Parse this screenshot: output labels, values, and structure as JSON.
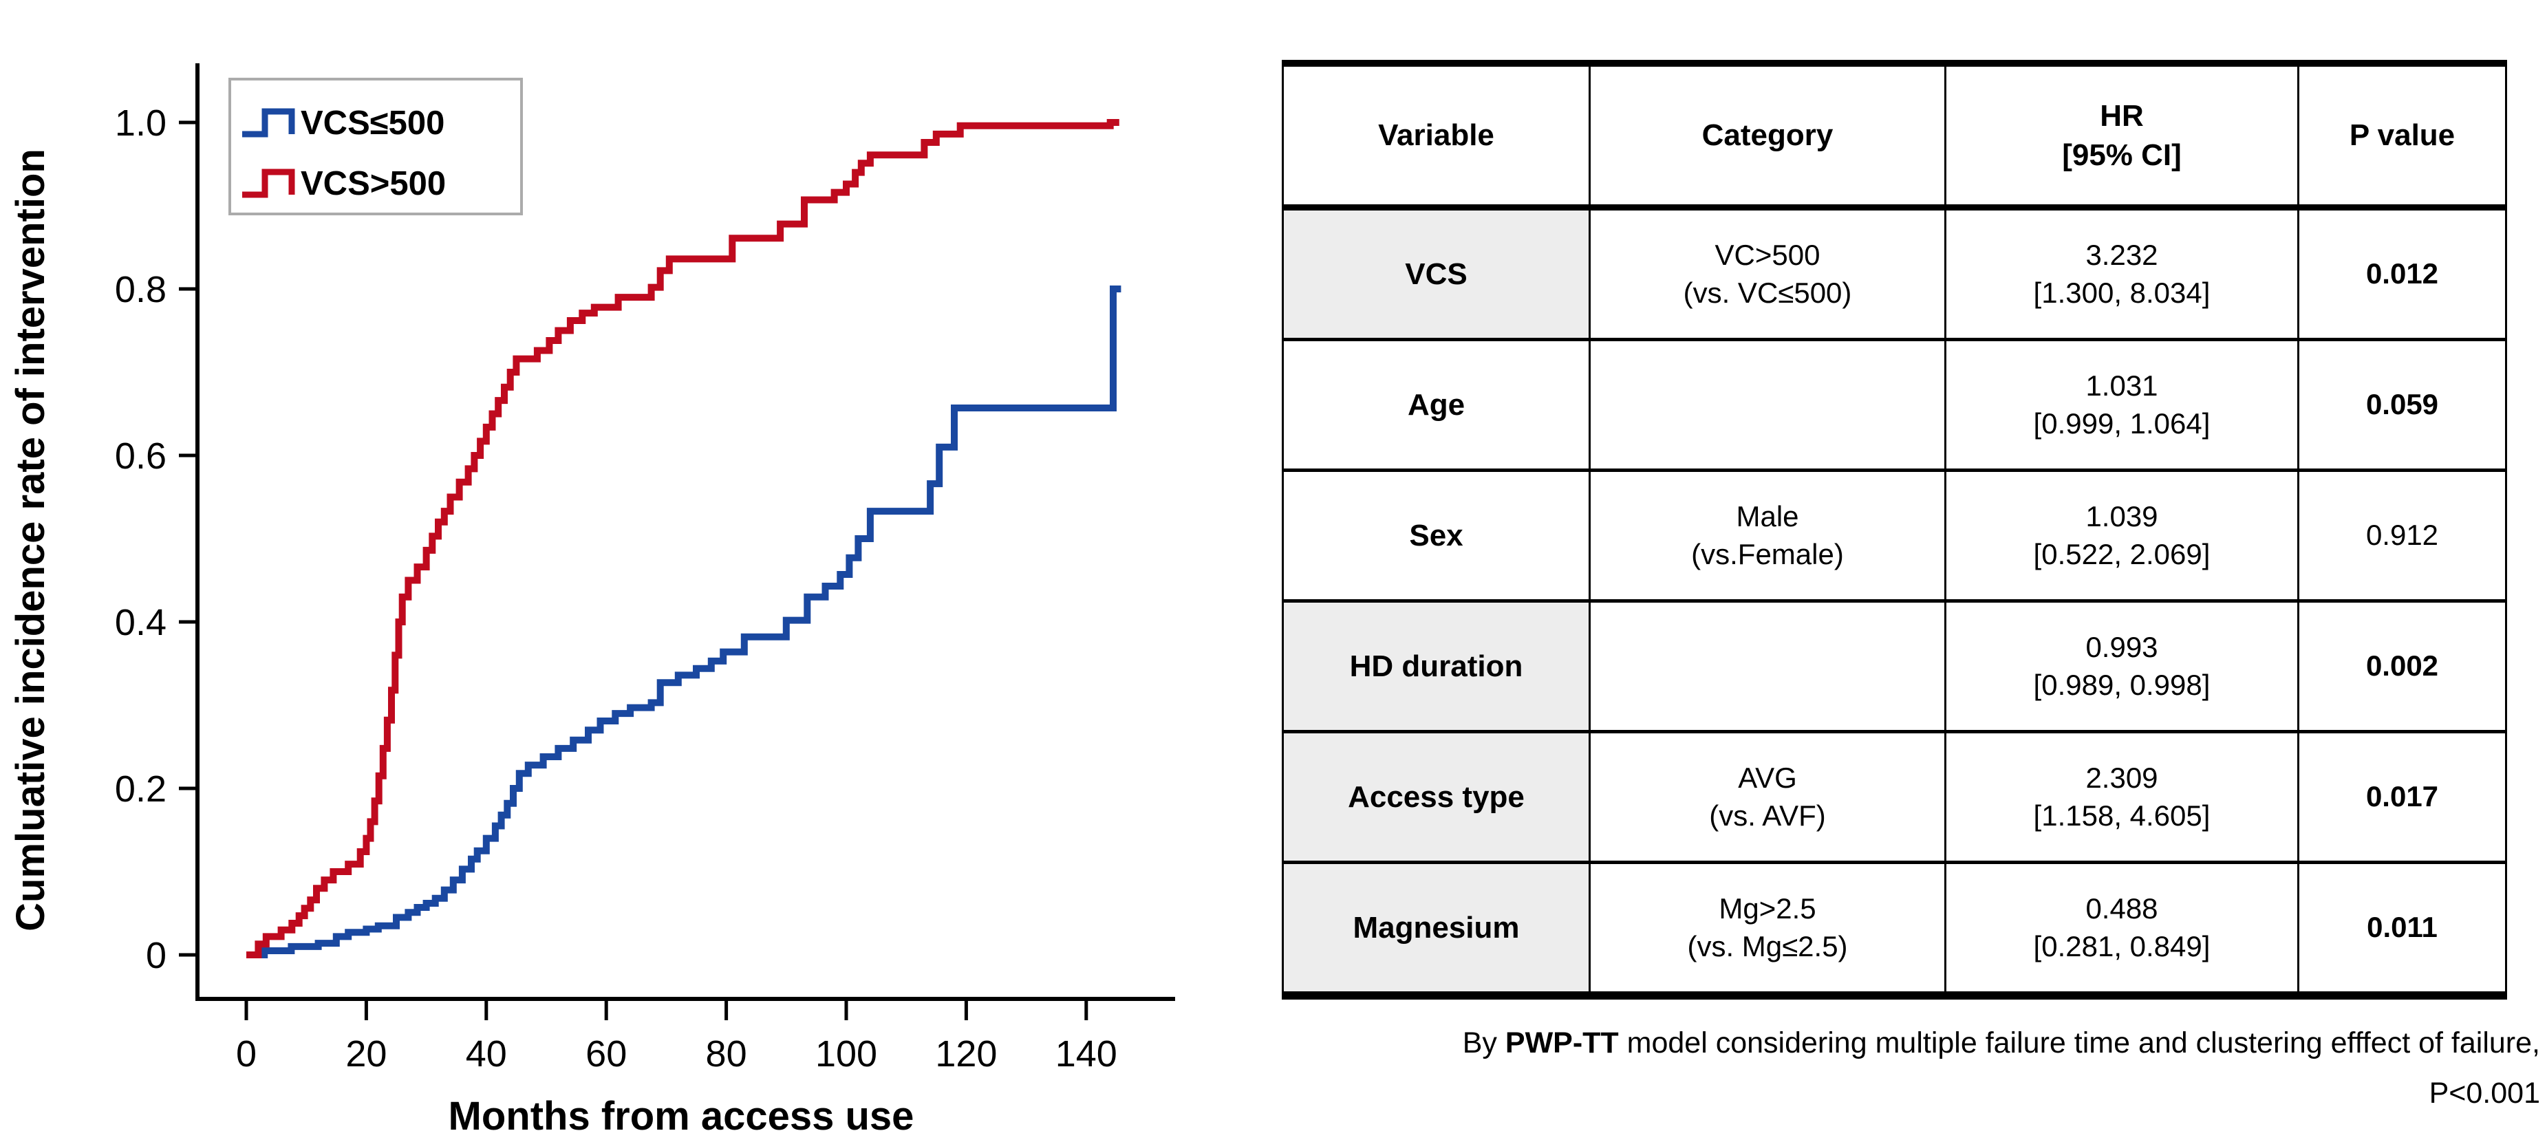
{
  "chart_data": {
    "type": "line",
    "subtype": "step-cumulative-incidence",
    "title": "",
    "xlabel": "Months from access use",
    "ylabel": "Cumluative incidence rate of intervention",
    "xlim": [
      0,
      155
    ],
    "ylim": [
      0,
      1.0
    ],
    "xticks": [
      0,
      20,
      40,
      60,
      80,
      100,
      120,
      140
    ],
    "yticks": [
      {
        "v": 0,
        "label": "0"
      },
      {
        "v": 0.2,
        "label": "0.2"
      },
      {
        "v": 0.4,
        "label": "0.4"
      },
      {
        "v": 0.6,
        "label": "0.6"
      },
      {
        "v": 0.8,
        "label": "0.8"
      },
      {
        "v": 1.0,
        "label": "1.0"
      }
    ],
    "grid": false,
    "legend_position": "top-left",
    "series": [
      {
        "name": "VCS≤500",
        "color": "#1a48a0",
        "end": 145.8,
        "points": [
          [
            0,
            0
          ],
          [
            3,
            0.005
          ],
          [
            7.5,
            0.01
          ],
          [
            12,
            0.014
          ],
          [
            15,
            0.022
          ],
          [
            17,
            0.027
          ],
          [
            20,
            0.031
          ],
          [
            22,
            0.035
          ],
          [
            25,
            0.045
          ],
          [
            27,
            0.051
          ],
          [
            28.5,
            0.057
          ],
          [
            30,
            0.062
          ],
          [
            31.5,
            0.068
          ],
          [
            33,
            0.078
          ],
          [
            34.5,
            0.09
          ],
          [
            36,
            0.103
          ],
          [
            37.5,
            0.115
          ],
          [
            38.5,
            0.125
          ],
          [
            40,
            0.14
          ],
          [
            41.5,
            0.155
          ],
          [
            42.5,
            0.168
          ],
          [
            43.5,
            0.182
          ],
          [
            44.5,
            0.2
          ],
          [
            45.5,
            0.218
          ],
          [
            47,
            0.228
          ],
          [
            49.5,
            0.238
          ],
          [
            52,
            0.248
          ],
          [
            54.5,
            0.258
          ],
          [
            57,
            0.27
          ],
          [
            59,
            0.281
          ],
          [
            61.5,
            0.29
          ],
          [
            64,
            0.297
          ],
          [
            67.5,
            0.303
          ],
          [
            69,
            0.327
          ],
          [
            72,
            0.336
          ],
          [
            75,
            0.344
          ],
          [
            77.5,
            0.353
          ],
          [
            79.5,
            0.364
          ],
          [
            83,
            0.382
          ],
          [
            90,
            0.402
          ],
          [
            93.5,
            0.43
          ],
          [
            96.5,
            0.443
          ],
          [
            99,
            0.457
          ],
          [
            100.5,
            0.477
          ],
          [
            102,
            0.5
          ],
          [
            104,
            0.533
          ],
          [
            114,
            0.566
          ],
          [
            115.5,
            0.61
          ],
          [
            118,
            0.657
          ],
          [
            144.5,
            0.8
          ]
        ]
      },
      {
        "name": "VCS>500",
        "color": "#bf0a1e",
        "end": 145.5,
        "points": [
          [
            0,
            0
          ],
          [
            2,
            0.013
          ],
          [
            3.3,
            0.022
          ],
          [
            5.8,
            0.03
          ],
          [
            7.6,
            0.038
          ],
          [
            8.8,
            0.047
          ],
          [
            9.7,
            0.056
          ],
          [
            10.7,
            0.066
          ],
          [
            11.7,
            0.08
          ],
          [
            13,
            0.09
          ],
          [
            14.5,
            0.1
          ],
          [
            17,
            0.109
          ],
          [
            19,
            0.124
          ],
          [
            20,
            0.14
          ],
          [
            20.7,
            0.16
          ],
          [
            21.4,
            0.185
          ],
          [
            22.1,
            0.215
          ],
          [
            22.8,
            0.248
          ],
          [
            23.5,
            0.282
          ],
          [
            24.2,
            0.318
          ],
          [
            24.8,
            0.36
          ],
          [
            25.4,
            0.4
          ],
          [
            26,
            0.43
          ],
          [
            27,
            0.45
          ],
          [
            28.5,
            0.466
          ],
          [
            30,
            0.486
          ],
          [
            31,
            0.503
          ],
          [
            32,
            0.52
          ],
          [
            33,
            0.533
          ],
          [
            34,
            0.55
          ],
          [
            35.5,
            0.568
          ],
          [
            37,
            0.584
          ],
          [
            38,
            0.6
          ],
          [
            39,
            0.617
          ],
          [
            40,
            0.634
          ],
          [
            41,
            0.65
          ],
          [
            42,
            0.666
          ],
          [
            43,
            0.682
          ],
          [
            44,
            0.7
          ],
          [
            45,
            0.716
          ],
          [
            48.5,
            0.726
          ],
          [
            50.5,
            0.738
          ],
          [
            52,
            0.75
          ],
          [
            54,
            0.762
          ],
          [
            56,
            0.771
          ],
          [
            58,
            0.778
          ],
          [
            62,
            0.79
          ],
          [
            67.5,
            0.802
          ],
          [
            69,
            0.822
          ],
          [
            70.5,
            0.836
          ],
          [
            81,
            0.861
          ],
          [
            89,
            0.878
          ],
          [
            93,
            0.907
          ],
          [
            98,
            0.916
          ],
          [
            100,
            0.926
          ],
          [
            101.5,
            0.94
          ],
          [
            102.5,
            0.951
          ],
          [
            104,
            0.961
          ],
          [
            113,
            0.976
          ],
          [
            115,
            0.986
          ],
          [
            119,
            0.996
          ],
          [
            144,
            1.0
          ]
        ]
      }
    ]
  },
  "colors": {
    "axis": "#000000",
    "legend_border": "#ababab",
    "table_shade": "#ededed",
    "blue_series": "#1a48a0",
    "red_series": "#bf0a1e"
  },
  "table": {
    "headers": [
      "Variable",
      "Category",
      "HR\n[95% CI]",
      "P value"
    ],
    "rows": [
      {
        "variable": "VCS",
        "category": "VC>500\n(vs. VC≤500)",
        "hr": "3.232\n[1.300, 8.034]",
        "p": "0.012",
        "shaded": true,
        "p_bold": true
      },
      {
        "variable": "Age",
        "category": "",
        "hr": "1.031\n[0.999, 1.064]",
        "p": "0.059",
        "shaded": false,
        "p_bold": true
      },
      {
        "variable": "Sex",
        "category": "Male\n(vs.Female)",
        "hr": "1.039\n[0.522, 2.069]",
        "p": "0.912",
        "shaded": false,
        "p_bold": false
      },
      {
        "variable": "HD duration",
        "category": "",
        "hr": "0.993\n[0.989, 0.998]",
        "p": "0.002",
        "shaded": true,
        "p_bold": true
      },
      {
        "variable": "Access type",
        "category": "AVG\n(vs. AVF)",
        "hr": "2.309\n[1.158, 4.605]",
        "p": "0.017",
        "shaded": true,
        "p_bold": true
      },
      {
        "variable": "Magnesium",
        "category": "Mg>2.5\n(vs. Mg≤2.5)",
        "hr": "0.488\n[0.281, 0.849]",
        "p": "0.011",
        "shaded": true,
        "p_bold": true
      }
    ]
  },
  "footnote": {
    "prefix": "By",
    "model": "PWP-TT",
    "rest": "model considering multiple failure time and clustering efffect of failure,",
    "line2": "P<0.001"
  }
}
